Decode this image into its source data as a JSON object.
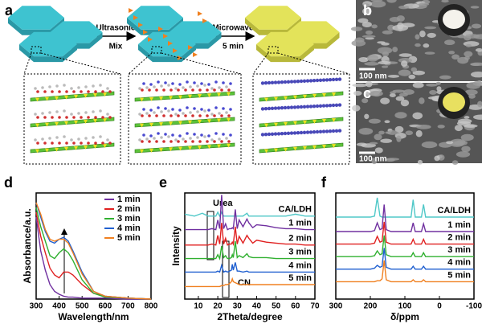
{
  "panel_a": {
    "label": "a",
    "step1": [
      "Ultrasonic",
      "Mix"
    ],
    "step2": [
      "Microwave",
      "5 min"
    ]
  },
  "panel_b": {
    "label": "b",
    "scale_bar": "100 nm"
  },
  "panel_c": {
    "label": "c",
    "scale_bar": "100 nm"
  },
  "chart_data": [
    {
      "type": "line",
      "label": "d",
      "xlabel": "Wavelength/nm",
      "ylabel": "Absorbance/a.u.",
      "x": [
        300,
        320,
        340,
        360,
        380,
        400,
        420,
        440,
        460,
        500,
        550,
        600,
        700,
        800
      ],
      "xlim": [
        300,
        800
      ],
      "xticks": [
        300,
        400,
        500,
        600,
        700,
        800
      ],
      "ylim": [
        0,
        1.1
      ],
      "legend": "upper right",
      "series": [
        {
          "name": "1 min",
          "color": "#7030a0",
          "values": [
            0.85,
            0.5,
            0.3,
            0.15,
            0.08,
            0.05,
            0.03,
            0.02,
            0.02,
            0.01,
            0.01,
            0.01,
            0,
            0
          ]
        },
        {
          "name": "2 min",
          "color": "#e02020",
          "values": [
            0.9,
            0.65,
            0.48,
            0.32,
            0.25,
            0.22,
            0.28,
            0.28,
            0.25,
            0.15,
            0.06,
            0.03,
            0.01,
            0
          ]
        },
        {
          "name": "3 min",
          "color": "#30b030",
          "values": [
            0.95,
            0.75,
            0.6,
            0.45,
            0.42,
            0.48,
            0.52,
            0.48,
            0.4,
            0.2,
            0.06,
            0.02,
            0.01,
            0
          ]
        },
        {
          "name": "4 min",
          "color": "#2060d0",
          "values": [
            1.0,
            0.85,
            0.7,
            0.6,
            0.58,
            0.62,
            0.64,
            0.6,
            0.5,
            0.28,
            0.08,
            0.03,
            0.01,
            0
          ]
        },
        {
          "name": "5 min",
          "color": "#f08020",
          "values": [
            1.0,
            0.88,
            0.72,
            0.62,
            0.6,
            0.62,
            0.62,
            0.58,
            0.48,
            0.26,
            0.08,
            0.03,
            0.01,
            0
          ]
        }
      ]
    },
    {
      "type": "line",
      "label": "e",
      "xlabel": "2Theta/degree",
      "ylabel": "Intensity",
      "annotations": [
        "Urea",
        "CN"
      ],
      "x": [
        3,
        8,
        12,
        15,
        17,
        19,
        20,
        21,
        22,
        23,
        24,
        25,
        26,
        27,
        27.5,
        28,
        29,
        30,
        31,
        33,
        35,
        36,
        38,
        40,
        45,
        50,
        55,
        60,
        65,
        70
      ],
      "xlim": [
        3,
        70
      ],
      "xticks": [
        10,
        20,
        30,
        40,
        50,
        60,
        70
      ],
      "ylim": [
        0,
        11
      ],
      "legend": "inline",
      "series": [
        {
          "name": "CA/LDH",
          "color": "#50c8c8",
          "values": [
            8.8,
            8.6,
            8.9,
            8.6,
            8.6,
            8.6,
            9.0,
            8.6,
            9.0,
            8.6,
            8.6,
            8.6,
            8.6,
            8.6,
            8.6,
            8.6,
            8.6,
            8.6,
            8.6,
            8.6,
            8.9,
            8.6,
            8.6,
            8.6,
            8.6,
            8.6,
            8.6,
            8.8,
            8.6,
            8.6
          ]
        },
        {
          "name": "1 min",
          "color": "#7030a0",
          "values": [
            7.2,
            7.2,
            7.2,
            7.2,
            7.3,
            7.2,
            8.2,
            7.3,
            10.8,
            7.3,
            7.8,
            7.2,
            7.3,
            7.3,
            7.4,
            7.3,
            9.3,
            7.3,
            8.2,
            7.5,
            8.3,
            7.9,
            7.4,
            7.7,
            7.6,
            7.4,
            7.3,
            7.3,
            7.2,
            7.2
          ]
        },
        {
          "name": "2 min",
          "color": "#e02020",
          "values": [
            5.6,
            5.6,
            5.6,
            5.6,
            5.7,
            5.6,
            6.6,
            5.7,
            7.9,
            5.7,
            6.3,
            5.6,
            5.7,
            5.7,
            5.9,
            5.7,
            7.5,
            5.7,
            6.5,
            5.8,
            6.6,
            6.3,
            5.8,
            6.1,
            5.9,
            5.8,
            5.7,
            5.7,
            5.6,
            5.6
          ]
        },
        {
          "name": "3 min",
          "color": "#30b030",
          "values": [
            4.2,
            4.2,
            4.2,
            4.2,
            4.2,
            4.2,
            4.6,
            4.2,
            5.5,
            4.3,
            4.5,
            4.2,
            4.2,
            4.3,
            4.6,
            4.3,
            6.0,
            4.3,
            4.5,
            4.3,
            4.7,
            4.4,
            4.3,
            4.3,
            4.3,
            4.2,
            4.2,
            4.2,
            4.2,
            4.2
          ]
        },
        {
          "name": "4 min",
          "color": "#2060d0",
          "values": [
            2.8,
            2.8,
            2.8,
            2.8,
            2.8,
            2.8,
            2.9,
            2.8,
            3.5,
            2.8,
            2.9,
            2.8,
            2.9,
            3.0,
            3.6,
            3.0,
            3.8,
            2.9,
            2.9,
            2.8,
            2.9,
            2.8,
            2.8,
            2.8,
            2.8,
            2.8,
            2.8,
            2.8,
            2.8,
            2.8
          ]
        },
        {
          "name": "5 min",
          "color": "#f08020",
          "values": [
            1.3,
            1.3,
            1.3,
            1.3,
            1.3,
            1.3,
            1.3,
            1.3,
            1.4,
            1.4,
            1.5,
            1.5,
            1.6,
            1.8,
            2.1,
            1.8,
            1.7,
            1.6,
            1.5,
            1.5,
            1.5,
            1.5,
            1.5,
            1.5,
            1.5,
            1.5,
            1.5,
            1.5,
            1.5,
            1.5
          ]
        }
      ]
    },
    {
      "type": "line",
      "label": "f",
      "xlabel": "δ/ppm",
      "x": [
        300,
        250,
        200,
        188,
        180,
        172,
        166,
        160,
        154,
        140,
        120,
        100,
        82,
        76,
        70,
        52,
        46,
        40,
        0,
        -50,
        -100
      ],
      "xlim": [
        300,
        -100
      ],
      "xticks": [
        300,
        200,
        100,
        0,
        -100
      ],
      "ylim": [
        0,
        11
      ],
      "legend": "inline",
      "series": [
        {
          "name": "CA/LDH",
          "color": "#50c8c8",
          "values": [
            8.5,
            8.5,
            8.5,
            8.6,
            10.5,
            8.6,
            8.5,
            8.5,
            8.5,
            8.5,
            8.5,
            8.5,
            8.5,
            10.3,
            8.5,
            8.5,
            9.8,
            8.5,
            8.5,
            8.5,
            8.5
          ]
        },
        {
          "name": "1 min",
          "color": "#7030a0",
          "values": [
            7.0,
            7.0,
            7.0,
            7.1,
            7.9,
            7.2,
            7.3,
            9.8,
            7.2,
            7.0,
            7.0,
            7.0,
            7.0,
            7.9,
            7.0,
            7.0,
            7.8,
            7.0,
            7.0,
            7.0,
            7.0
          ]
        },
        {
          "name": "2 min",
          "color": "#e02020",
          "values": [
            5.7,
            5.7,
            5.7,
            5.8,
            6.5,
            5.9,
            6.0,
            8.0,
            5.9,
            5.7,
            5.7,
            5.7,
            5.7,
            6.2,
            5.7,
            5.7,
            6.2,
            5.7,
            5.7,
            5.7,
            5.7
          ]
        },
        {
          "name": "3 min",
          "color": "#30b030",
          "values": [
            4.4,
            4.4,
            4.4,
            4.5,
            5.0,
            4.6,
            4.7,
            6.6,
            4.6,
            4.4,
            4.4,
            4.4,
            4.4,
            4.8,
            4.4,
            4.4,
            4.8,
            4.4,
            4.4,
            4.4,
            4.4
          ]
        },
        {
          "name": "4 min",
          "color": "#2060d0",
          "values": [
            3.1,
            3.1,
            3.1,
            3.2,
            3.5,
            3.3,
            3.4,
            5.3,
            3.3,
            3.1,
            3.1,
            3.1,
            3.1,
            3.4,
            3.1,
            3.1,
            3.4,
            3.1,
            3.1,
            3.1,
            3.1
          ]
        },
        {
          "name": "5 min",
          "color": "#f08020",
          "values": [
            1.8,
            1.8,
            1.8,
            1.8,
            1.9,
            1.9,
            2.1,
            4.0,
            2.0,
            1.8,
            1.8,
            1.8,
            1.8,
            2.0,
            1.8,
            1.8,
            2.0,
            1.8,
            1.8,
            1.8,
            1.8
          ]
        }
      ]
    }
  ]
}
